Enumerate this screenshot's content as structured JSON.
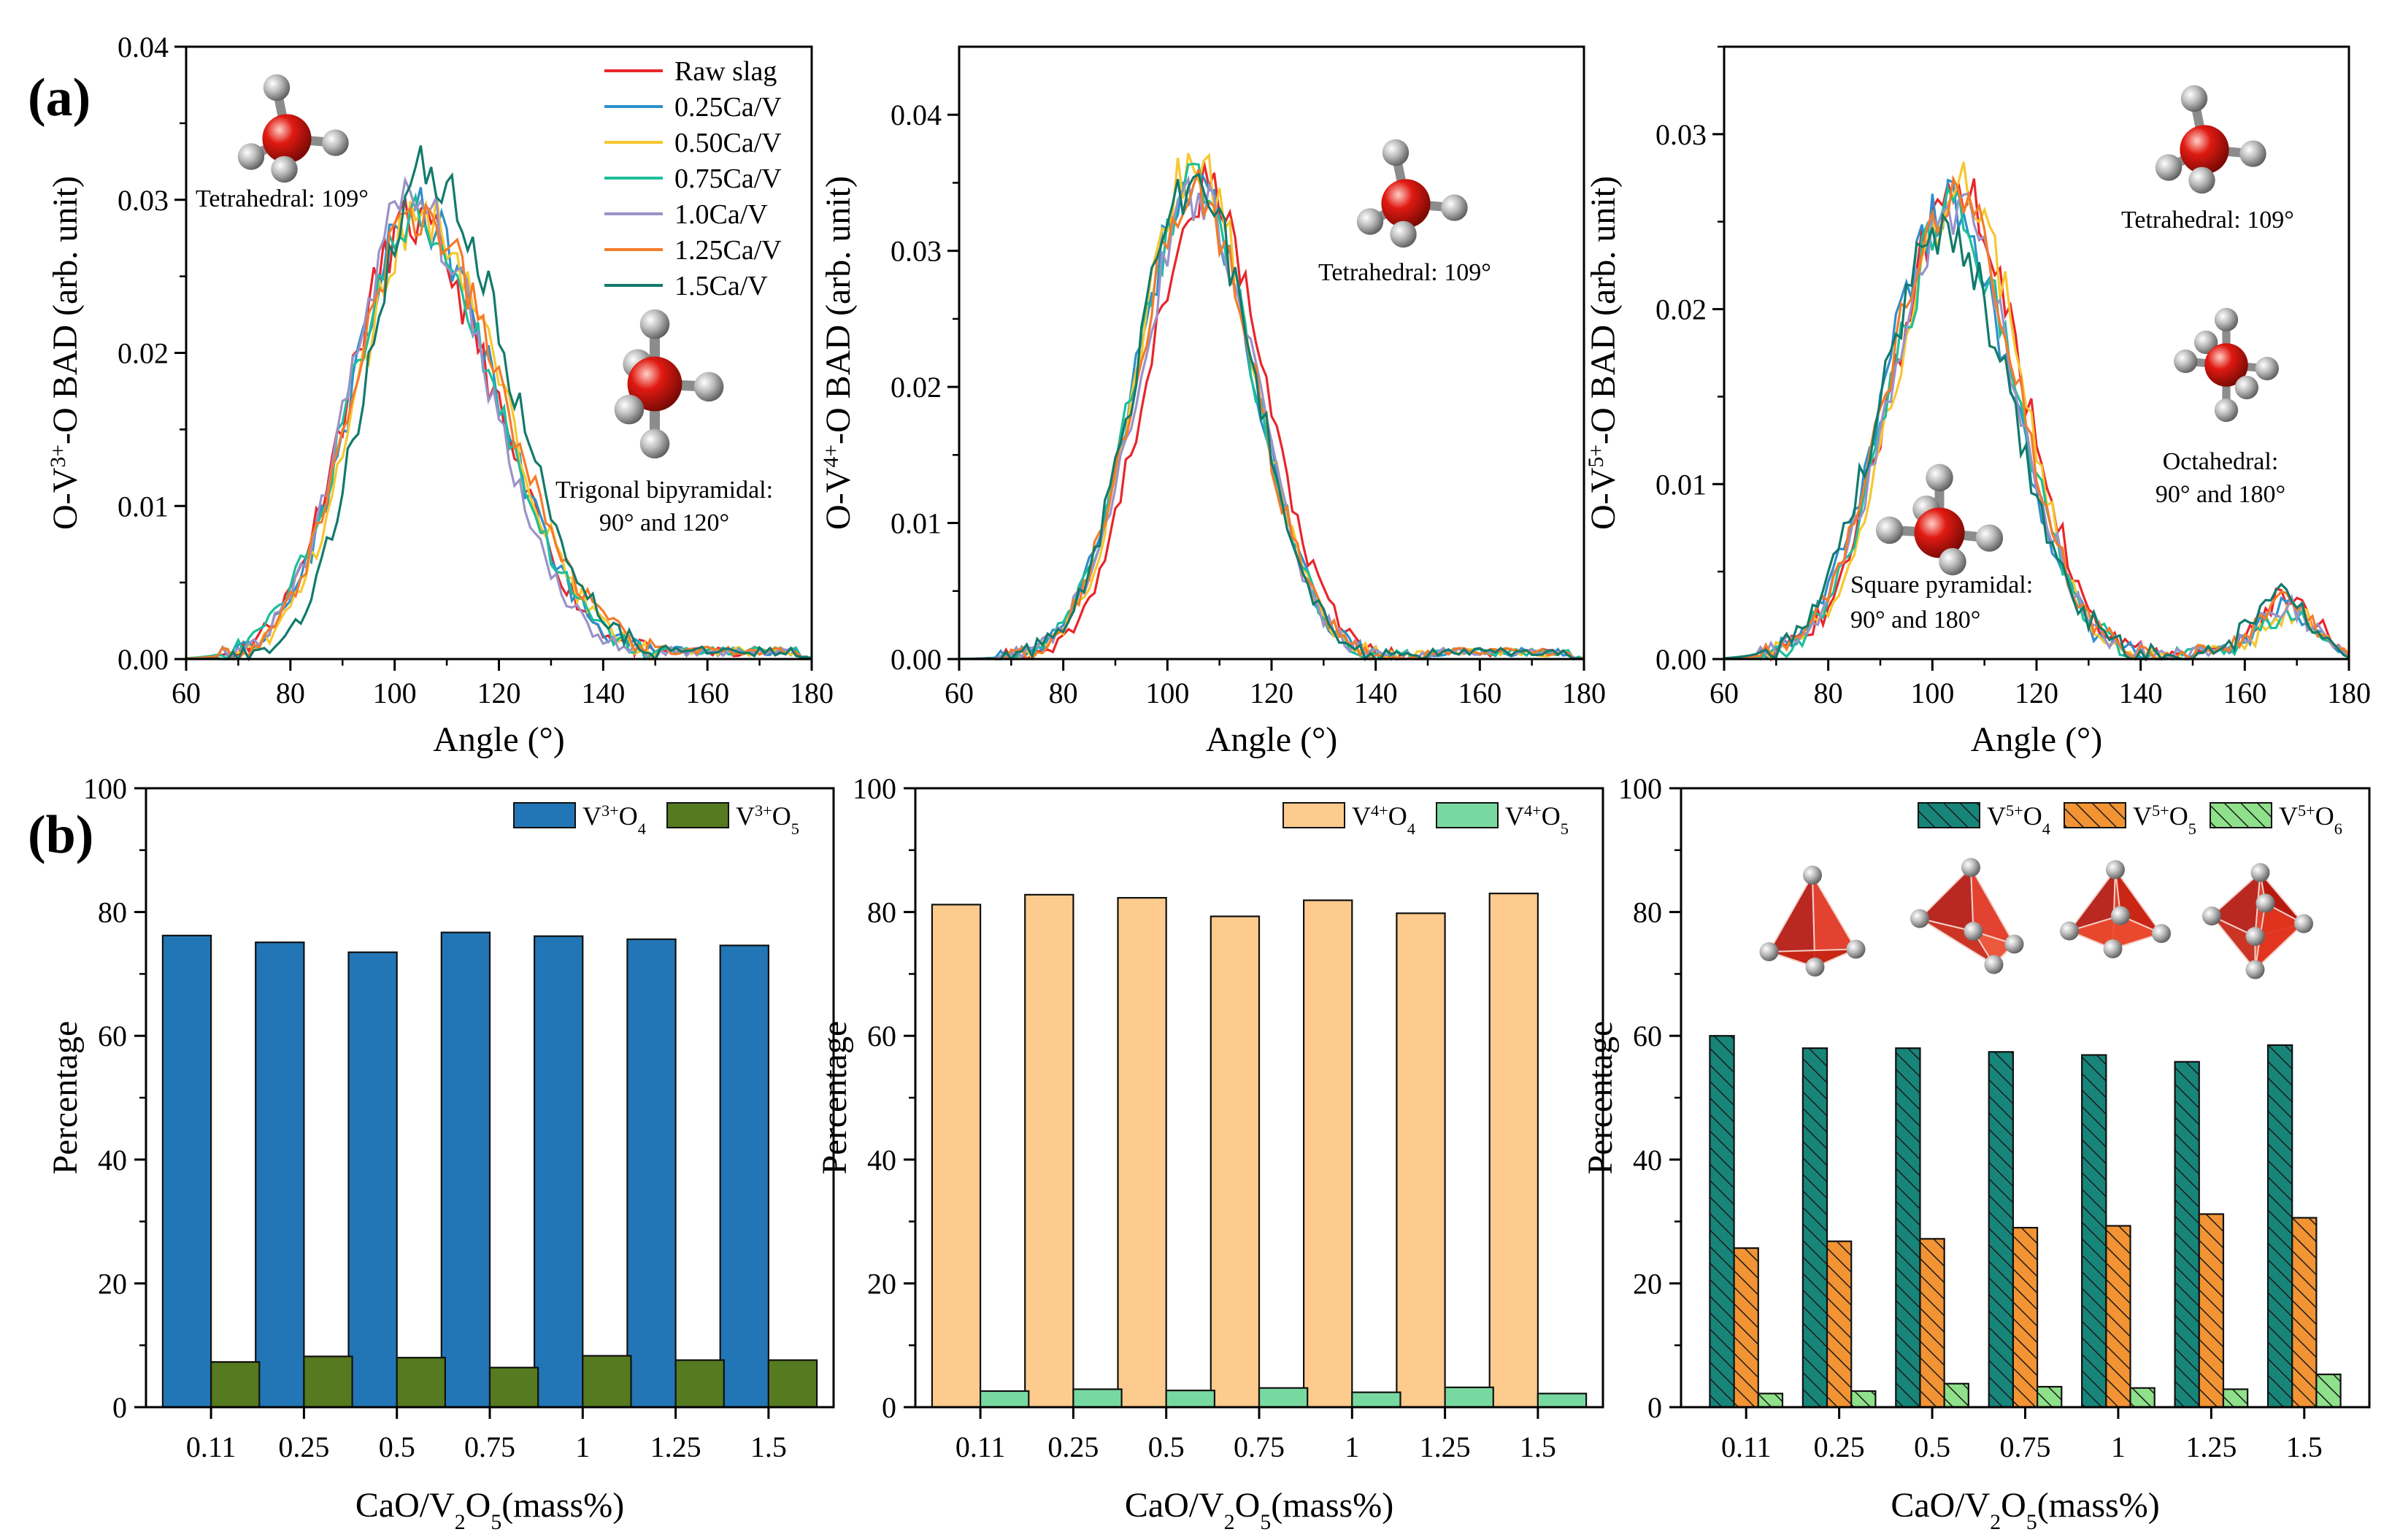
{
  "panel_labels": {
    "a": "(a)",
    "b": "(b)"
  },
  "colors": {
    "raw": "#e8262b",
    "s025": "#2f8fcb",
    "s050": "#f6c72f",
    "s075": "#1bbf9a",
    "s100": "#9a92c7",
    "s125": "#f47b2a",
    "s150": "#127a6c",
    "v3o4": "#2276b6",
    "v3o5": "#557a1f",
    "v4o4": "#fdcb8d",
    "v4o5": "#78d9a0",
    "v5o4": "#17857a",
    "v5o5": "#f29334",
    "v5o6": "#8fe08a",
    "atom_center": "#e01a12",
    "atom_ligand": "#bdbdbd",
    "polyhedron": "#d8321d"
  },
  "annotations": {
    "p1_tet": "Tetrahedral: 109°",
    "p1_tbp_1": "Trigonal bipyramidal:",
    "p1_tbp_2": "90° and 120°",
    "p2_tet": "Tetrahedral: 109°",
    "p3_tet": "Tetrahedral: 109°",
    "p3_oct_1": "Octahedral:",
    "p3_oct_2": "90° and 180°",
    "p3_sq_1": "Square pyramidal:",
    "p3_sq_2": "90° and 180°"
  },
  "chart_data": [
    {
      "type": "line",
      "ylabel_parts": [
        "O-V",
        "3+",
        "-O BAD (arb. unit)"
      ],
      "xlabel": "Angle (°)",
      "xlim": [
        60,
        180
      ],
      "ylim": [
        0,
        0.04
      ],
      "xticks": [
        60,
        80,
        100,
        120,
        140,
        160,
        180
      ],
      "yticks": [
        0.0,
        0.01,
        0.02,
        0.03,
        0.04
      ],
      "ytick_labels": [
        "0.00",
        "0.01",
        "0.02",
        "0.03",
        "0.04"
      ],
      "legend": "top-right",
      "series": [
        {
          "name": "Raw slag",
          "color_key": "raw",
          "peak": 0.0285,
          "center": 103,
          "sigma_l": 12,
          "sigma_r": 16
        },
        {
          "name": "0.25Ca/V",
          "color_key": "s025",
          "peak": 0.029,
          "center": 104,
          "sigma_l": 12,
          "sigma_r": 15.5
        },
        {
          "name": "0.50Ca/V",
          "color_key": "s050",
          "peak": 0.0292,
          "center": 105,
          "sigma_l": 12,
          "sigma_r": 15.5
        },
        {
          "name": "0.75Ca/V",
          "color_key": "s075",
          "peak": 0.0285,
          "center": 104,
          "sigma_l": 12.5,
          "sigma_r": 15.5
        },
        {
          "name": "1.0Ca/V",
          "color_key": "s100",
          "peak": 0.03,
          "center": 103,
          "sigma_l": 11.5,
          "sigma_r": 15
        },
        {
          "name": "1.25Ca/V",
          "color_key": "s125",
          "peak": 0.029,
          "center": 104,
          "sigma_l": 12,
          "sigma_r": 16.5
        },
        {
          "name": "1.5Ca/V",
          "color_key": "s150",
          "peak": 0.032,
          "center": 106,
          "sigma_l": 11,
          "sigma_r": 15.5
        }
      ]
    },
    {
      "type": "line",
      "ylabel_parts": [
        "O-V",
        "4+",
        "-O BAD (arb. unit)"
      ],
      "xlabel": "Angle (°)",
      "xlim": [
        60,
        180
      ],
      "ylim": [
        0,
        0.045
      ],
      "xticks": [
        60,
        80,
        100,
        120,
        140,
        160,
        180
      ],
      "yticks": [
        0.0,
        0.01,
        0.02,
        0.03,
        0.04
      ],
      "ytick_labels": [
        "0.00",
        "0.01",
        "0.02",
        "0.03",
        "0.04"
      ],
      "series": [
        {
          "name": "Raw slag",
          "color_key": "raw",
          "peak": 0.0345,
          "center": 107,
          "sigma_l": 11,
          "sigma_r": 11.5
        },
        {
          "name": "0.25Ca/V",
          "color_key": "s025",
          "peak": 0.035,
          "center": 105,
          "sigma_l": 11,
          "sigma_r": 11.5
        },
        {
          "name": "0.50Ca/V",
          "color_key": "s050",
          "peak": 0.0365,
          "center": 105,
          "sigma_l": 10.5,
          "sigma_r": 11.5
        },
        {
          "name": "0.75Ca/V",
          "color_key": "s075",
          "peak": 0.035,
          "center": 105,
          "sigma_l": 11,
          "sigma_r": 11.5
        },
        {
          "name": "1.0Ca/V",
          "color_key": "s100",
          "peak": 0.034,
          "center": 106,
          "sigma_l": 11.5,
          "sigma_r": 11
        },
        {
          "name": "1.25Ca/V",
          "color_key": "s125",
          "peak": 0.0345,
          "center": 105,
          "sigma_l": 11,
          "sigma_r": 11.5
        },
        {
          "name": "1.5Ca/V",
          "color_key": "s150",
          "peak": 0.0352,
          "center": 105,
          "sigma_l": 11,
          "sigma_r": 11.5
        }
      ]
    },
    {
      "type": "line",
      "ylabel_parts": [
        "O-V",
        "5+",
        "-O BAD (arb. unit)"
      ],
      "xlabel": "Angle (°)",
      "xlim": [
        60,
        180
      ],
      "ylim": [
        0,
        0.035
      ],
      "xticks": [
        60,
        80,
        100,
        120,
        140,
        160,
        180
      ],
      "yticks": [
        0.0,
        0.01,
        0.02,
        0.03
      ],
      "ytick_labels": [
        "0.00",
        "0.01",
        "0.02",
        "0.03"
      ],
      "series": [
        {
          "name": "Raw slag",
          "color_key": "raw",
          "peak": 0.0275,
          "center": 105,
          "sigma_l": 12,
          "sigma_r": 12,
          "peak2": 0.0035,
          "center2": 168
        },
        {
          "name": "0.25Ca/V",
          "color_key": "s025",
          "peak": 0.026,
          "center": 103,
          "sigma_l": 12,
          "sigma_r": 12,
          "peak2": 0.003,
          "center2": 168
        },
        {
          "name": "0.50Ca/V",
          "color_key": "s050",
          "peak": 0.027,
          "center": 106,
          "sigma_l": 12.5,
          "sigma_r": 11,
          "peak2": 0.0025,
          "center2": 169
        },
        {
          "name": "0.75Ca/V",
          "color_key": "s075",
          "peak": 0.0255,
          "center": 104,
          "sigma_l": 12,
          "sigma_r": 12,
          "peak2": 0.0025,
          "center2": 168
        },
        {
          "name": "1.0Ca/V",
          "color_key": "s100",
          "peak": 0.026,
          "center": 104,
          "sigma_l": 12,
          "sigma_r": 12,
          "peak2": 0.003,
          "center2": 168
        },
        {
          "name": "1.25Ca/V",
          "color_key": "s125",
          "peak": 0.027,
          "center": 104,
          "sigma_l": 12,
          "sigma_r": 12,
          "peak2": 0.0035,
          "center2": 168
        },
        {
          "name": "1.5Ca/V",
          "color_key": "s150",
          "peak": 0.0245,
          "center": 102,
          "sigma_l": 12,
          "sigma_r": 13,
          "peak2": 0.004,
          "center2": 167
        }
      ]
    },
    {
      "type": "bar",
      "ylabel": "Percentage",
      "xlabel_parts": [
        "CaO/V",
        "2",
        "O",
        "5",
        "(mass%)"
      ],
      "categories": [
        "0.11",
        "0.25",
        "0.5",
        "0.75",
        "1",
        "1.25",
        "1.5"
      ],
      "ylim": [
        0,
        100
      ],
      "yticks": [
        0,
        20,
        40,
        60,
        80,
        100
      ],
      "legend": "top-right",
      "series": [
        {
          "name_parts": [
            "V",
            "3+",
            "O",
            "4"
          ],
          "color_key": "v3o4",
          "hatch": false,
          "values": [
            76.2,
            75.1,
            73.5,
            76.7,
            76.1,
            75.6,
            74.6
          ]
        },
        {
          "name_parts": [
            "V",
            "3+",
            "O",
            "5"
          ],
          "color_key": "v3o5",
          "hatch": false,
          "values": [
            7.3,
            8.2,
            8.0,
            6.4,
            8.3,
            7.6,
            7.6
          ]
        }
      ]
    },
    {
      "type": "bar",
      "ylabel": "Percentage",
      "xlabel_parts": [
        "CaO/V",
        "2",
        "O",
        "5",
        "(mass%)"
      ],
      "categories": [
        "0.11",
        "0.25",
        "0.5",
        "0.75",
        "1",
        "1.25",
        "1.5"
      ],
      "ylim": [
        0,
        100
      ],
      "yticks": [
        0,
        20,
        40,
        60,
        80,
        100
      ],
      "legend": "top-right",
      "series": [
        {
          "name_parts": [
            "V",
            "4+",
            "O",
            "4"
          ],
          "color_key": "v4o4",
          "hatch": false,
          "values": [
            81.2,
            82.8,
            82.3,
            79.3,
            81.9,
            79.8,
            83.0
          ]
        },
        {
          "name_parts": [
            "V",
            "4+",
            "O",
            "5"
          ],
          "color_key": "v4o5",
          "hatch": false,
          "values": [
            2.6,
            2.9,
            2.7,
            3.1,
            2.4,
            3.2,
            2.2
          ]
        }
      ]
    },
    {
      "type": "bar",
      "ylabel": "Percentage",
      "xlabel_parts": [
        "CaO/V",
        "2",
        "O",
        "5",
        "(mass%)"
      ],
      "categories": [
        "0.11",
        "0.25",
        "0.5",
        "0.75",
        "1",
        "1.25",
        "1.5"
      ],
      "ylim": [
        0,
        100
      ],
      "yticks": [
        0,
        20,
        40,
        60,
        80,
        100
      ],
      "legend": "top-right",
      "series": [
        {
          "name_parts": [
            "V",
            "5+",
            "O",
            "4"
          ],
          "color_key": "v5o4",
          "hatch": true,
          "values": [
            60.0,
            58.0,
            58.0,
            57.4,
            56.9,
            55.8,
            58.5
          ]
        },
        {
          "name_parts": [
            "V",
            "5+",
            "O",
            "5"
          ],
          "color_key": "v5o5",
          "hatch": true,
          "values": [
            25.7,
            26.8,
            27.2,
            29.0,
            29.3,
            31.2,
            30.6
          ]
        },
        {
          "name_parts": [
            "V",
            "5+",
            "O",
            "6"
          ],
          "color_key": "v5o6",
          "hatch": true,
          "values": [
            2.2,
            2.6,
            3.8,
            3.3,
            3.1,
            2.9,
            5.3
          ]
        }
      ]
    }
  ]
}
